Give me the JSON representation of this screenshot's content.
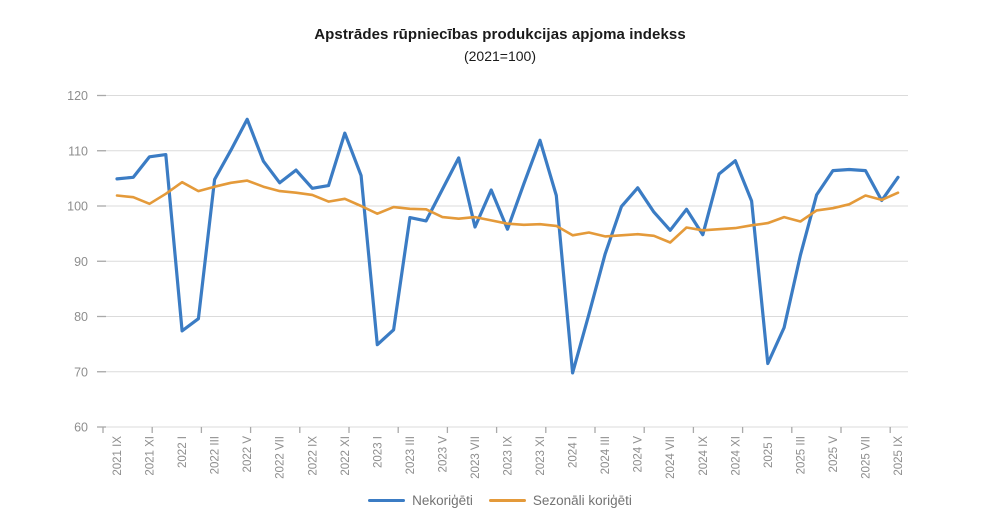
{
  "title": "Apstrādes rūpniecības produkcijas apjoma indekss",
  "subtitle": "(2021=100)",
  "colors": {
    "series_unadjusted": "#3B7CC4",
    "series_adjusted": "#E49A3A",
    "gridline": "#DBDBDB",
    "tick": "#A9A9A9",
    "axis_label": "#8E8E8E",
    "title_text": "#1A1A1A",
    "legend_text": "#737373",
    "background": "#FFFFFF"
  },
  "chart_data": {
    "type": "line",
    "title": "Apstrādes rūpniecības produkcijas apjoma indekss",
    "subtitle": "(2021=100)",
    "xlabel": "",
    "ylabel": "",
    "ylim": [
      60,
      120
    ],
    "ytick_step": 10,
    "y_ticks": [
      60,
      70,
      80,
      90,
      100,
      110,
      120
    ],
    "grid": "horizontal",
    "legend_position": "bottom",
    "x_tick_labels": [
      "2021 IX",
      "2021 XI",
      "2022 I",
      "2022 III",
      "2022 V",
      "2022 VII",
      "2022 IX",
      "2022 XI",
      "2023 I",
      "2023 III",
      "2023 V",
      "2023 VII",
      "2023 IX",
      "2023 XI",
      "2024 I",
      "2024 III",
      "2024 V",
      "2024 VII",
      "2024 IX",
      "2024 XI",
      "2025 I",
      "2025 III",
      "2025 V",
      "2025 VII",
      "2025 IX"
    ],
    "categories": [
      "2021 IX",
      "2021 X",
      "2021 XI",
      "2021 XII",
      "2022 I",
      "2022 II",
      "2022 III",
      "2022 IV",
      "2022 V",
      "2022 VI",
      "2022 VII",
      "2022 VIII",
      "2022 IX",
      "2022 X",
      "2022 XI",
      "2022 XII",
      "2023 I",
      "2023 II",
      "2023 III",
      "2023 IV",
      "2023 V",
      "2023 VI",
      "2023 VII",
      "2023 VIII",
      "2023 IX",
      "2023 X",
      "2023 XI",
      "2023 XII",
      "2024 I",
      "2024 II",
      "2024 III",
      "2024 IV",
      "2024 V",
      "2024 VI",
      "2024 VII",
      "2024 VIII",
      "2024 IX",
      "2024 X",
      "2024 XI",
      "2024 XII",
      "2025 I",
      "2025 II",
      "2025 III",
      "2025 IV",
      "2025 V",
      "2025 VI",
      "2025 VII",
      "2025 VIII",
      "2025 IX"
    ],
    "series": [
      {
        "name": "Nekoriģēti",
        "color": "#3B7CC4",
        "values": [
          104.9,
          105.2,
          108.9,
          109.3,
          77.4,
          79.6,
          104.8,
          110.1,
          115.7,
          108.1,
          104.2,
          106.5,
          103.2,
          103.7,
          113.2,
          105.5,
          74.9,
          77.6,
          97.9,
          97.3,
          103.0,
          108.7,
          96.2,
          102.9,
          95.8,
          104.0,
          111.9,
          101.9,
          69.8,
          80.4,
          91.3,
          99.9,
          103.3,
          98.9,
          95.6,
          99.4,
          94.8,
          105.8,
          108.2,
          100.9,
          71.5,
          78.0,
          91.1,
          102.0,
          106.4,
          106.6,
          106.4,
          101.0,
          105.2
        ]
      },
      {
        "name": "Sezonāli koriģēti",
        "color": "#E49A3A",
        "values": [
          101.9,
          101.6,
          100.4,
          102.2,
          104.3,
          102.7,
          103.5,
          104.2,
          104.6,
          103.5,
          102.7,
          102.4,
          102.0,
          100.8,
          101.3,
          100.0,
          98.6,
          99.8,
          99.5,
          99.4,
          98.0,
          97.7,
          98.0,
          97.4,
          96.8,
          96.6,
          96.7,
          96.4,
          94.7,
          95.2,
          94.5,
          94.7,
          94.9,
          94.6,
          93.4,
          96.1,
          95.6,
          95.8,
          96.0,
          96.5,
          96.9,
          98.0,
          97.2,
          99.2,
          99.6,
          100.3,
          101.9,
          101.1,
          102.4
        ]
      }
    ]
  }
}
